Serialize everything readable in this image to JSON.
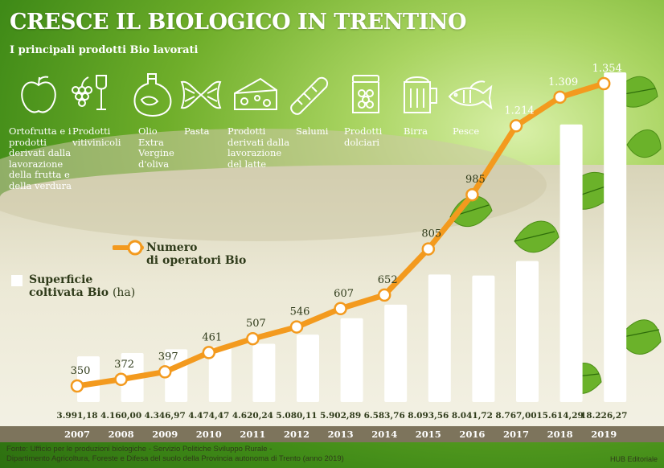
{
  "header": {
    "title": "CRESCE IL BIOLOGICO IN TRENTINO",
    "subtitle": "I principali prodotti Bio lavorati"
  },
  "products": [
    {
      "label": "Ortofrutta e i prodotti derivati dalla lavorazione della frutta e della verdura",
      "icon": "apple-icon"
    },
    {
      "label": "Prodotti vitivinicoli",
      "icon": "grapes-wine-icon"
    },
    {
      "label": "Olio Extra Vergine d'oliva",
      "icon": "olive-oil-icon"
    },
    {
      "label": "Pasta",
      "icon": "pasta-icon"
    },
    {
      "label": "Prodotti derivati dalla lavorazione del latte",
      "icon": "cheese-icon"
    },
    {
      "label": "Salumi",
      "icon": "salami-icon"
    },
    {
      "label": "Prodotti dolciari",
      "icon": "jam-jar-icon"
    },
    {
      "label": "Birra",
      "icon": "beer-icon"
    },
    {
      "label": "Pesce",
      "icon": "fish-icon"
    }
  ],
  "legend": {
    "line_label_1": "Numero",
    "line_label_2": "di operatori Bio",
    "bar_label_1": "Superficie",
    "bar_label_2": "coltivata Bio",
    "bar_unit": "(ha)"
  },
  "chart_data": {
    "type": "bar",
    "categories": [
      "2007",
      "2008",
      "2009",
      "2010",
      "2011",
      "2012",
      "2013",
      "2014",
      "2015",
      "2016",
      "2017",
      "2018",
      "2019"
    ],
    "series": [
      {
        "name": "Superficie coltivata Bio (ha)",
        "type": "bar",
        "values": [
          3991.18,
          4160.0,
          4346.97,
          4474.47,
          4620.24,
          5080.11,
          5902.89,
          6583.76,
          8093.56,
          8041.72,
          8767.0,
          15614.29,
          18226.27
        ],
        "labels": [
          "3.991,18",
          "4.160,00",
          "4.346,97",
          "4.474,47",
          "4.620,24",
          "5.080,11",
          "5.902,89",
          "6.583,76",
          "8.093,56",
          "8.041,72",
          "8.767,00",
          "15.614,29",
          "18.226,27"
        ],
        "color": "#ffffff"
      },
      {
        "name": "Numero di operatori Bio",
        "type": "line",
        "values": [
          350,
          372,
          397,
          461,
          507,
          546,
          607,
          652,
          805,
          985,
          1214,
          1309,
          1354
        ],
        "labels": [
          "350",
          "372",
          "397",
          "461",
          "507",
          "546",
          "607",
          "652",
          "805",
          "985",
          "1.214",
          "1.309",
          "1.354"
        ],
        "color": "#f39a1e"
      }
    ]
  },
  "footer": {
    "source_1": "Fonte: Ufficio per le produzioni biologiche - Servizio Politiche Sviluppo Rurale -",
    "source_2": "Dipartimento Agricoltura, Foreste e Difesa del suolo della Provincia autonoma di Trento (anno 2019)",
    "credit": "HUB Editoriale"
  }
}
